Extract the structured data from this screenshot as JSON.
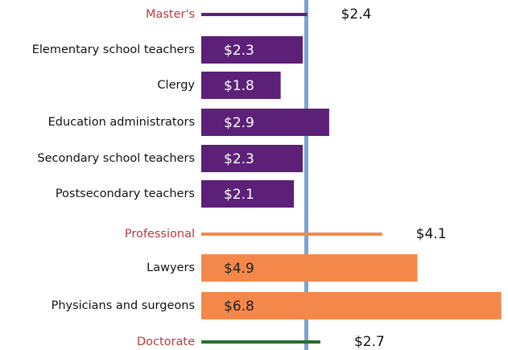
{
  "chart_data": {
    "type": "bar",
    "groups": [
      {
        "name": "Master's",
        "value": 2.4,
        "value_label": "$2.4",
        "color": "#5c2078",
        "items": [
          {
            "name": "Elementary school teachers",
            "value": 2.3,
            "value_label": "$2.3"
          },
          {
            "name": "Clergy",
            "value": 1.8,
            "value_label": "$1.8"
          },
          {
            "name": "Education administrators",
            "value": 2.9,
            "value_label": "$2.9"
          },
          {
            "name": "Secondary school teachers",
            "value": 2.3,
            "value_label": "$2.3"
          },
          {
            "name": "Postsecondary teachers",
            "value": 2.1,
            "value_label": "$2.1"
          }
        ]
      },
      {
        "name": "Professional",
        "value": 4.1,
        "value_label": "$4.1",
        "color": "#f4884a",
        "items": [
          {
            "name": "Lawyers",
            "value": 4.9,
            "value_label": "$4.9"
          },
          {
            "name": "Physicians and surgeons",
            "value": 6.8,
            "value_label": "$6.8"
          }
        ]
      },
      {
        "name": "Doctorate",
        "value": 2.7,
        "value_label": "$2.7",
        "color": "#2e6b30",
        "items": []
      }
    ]
  }
}
